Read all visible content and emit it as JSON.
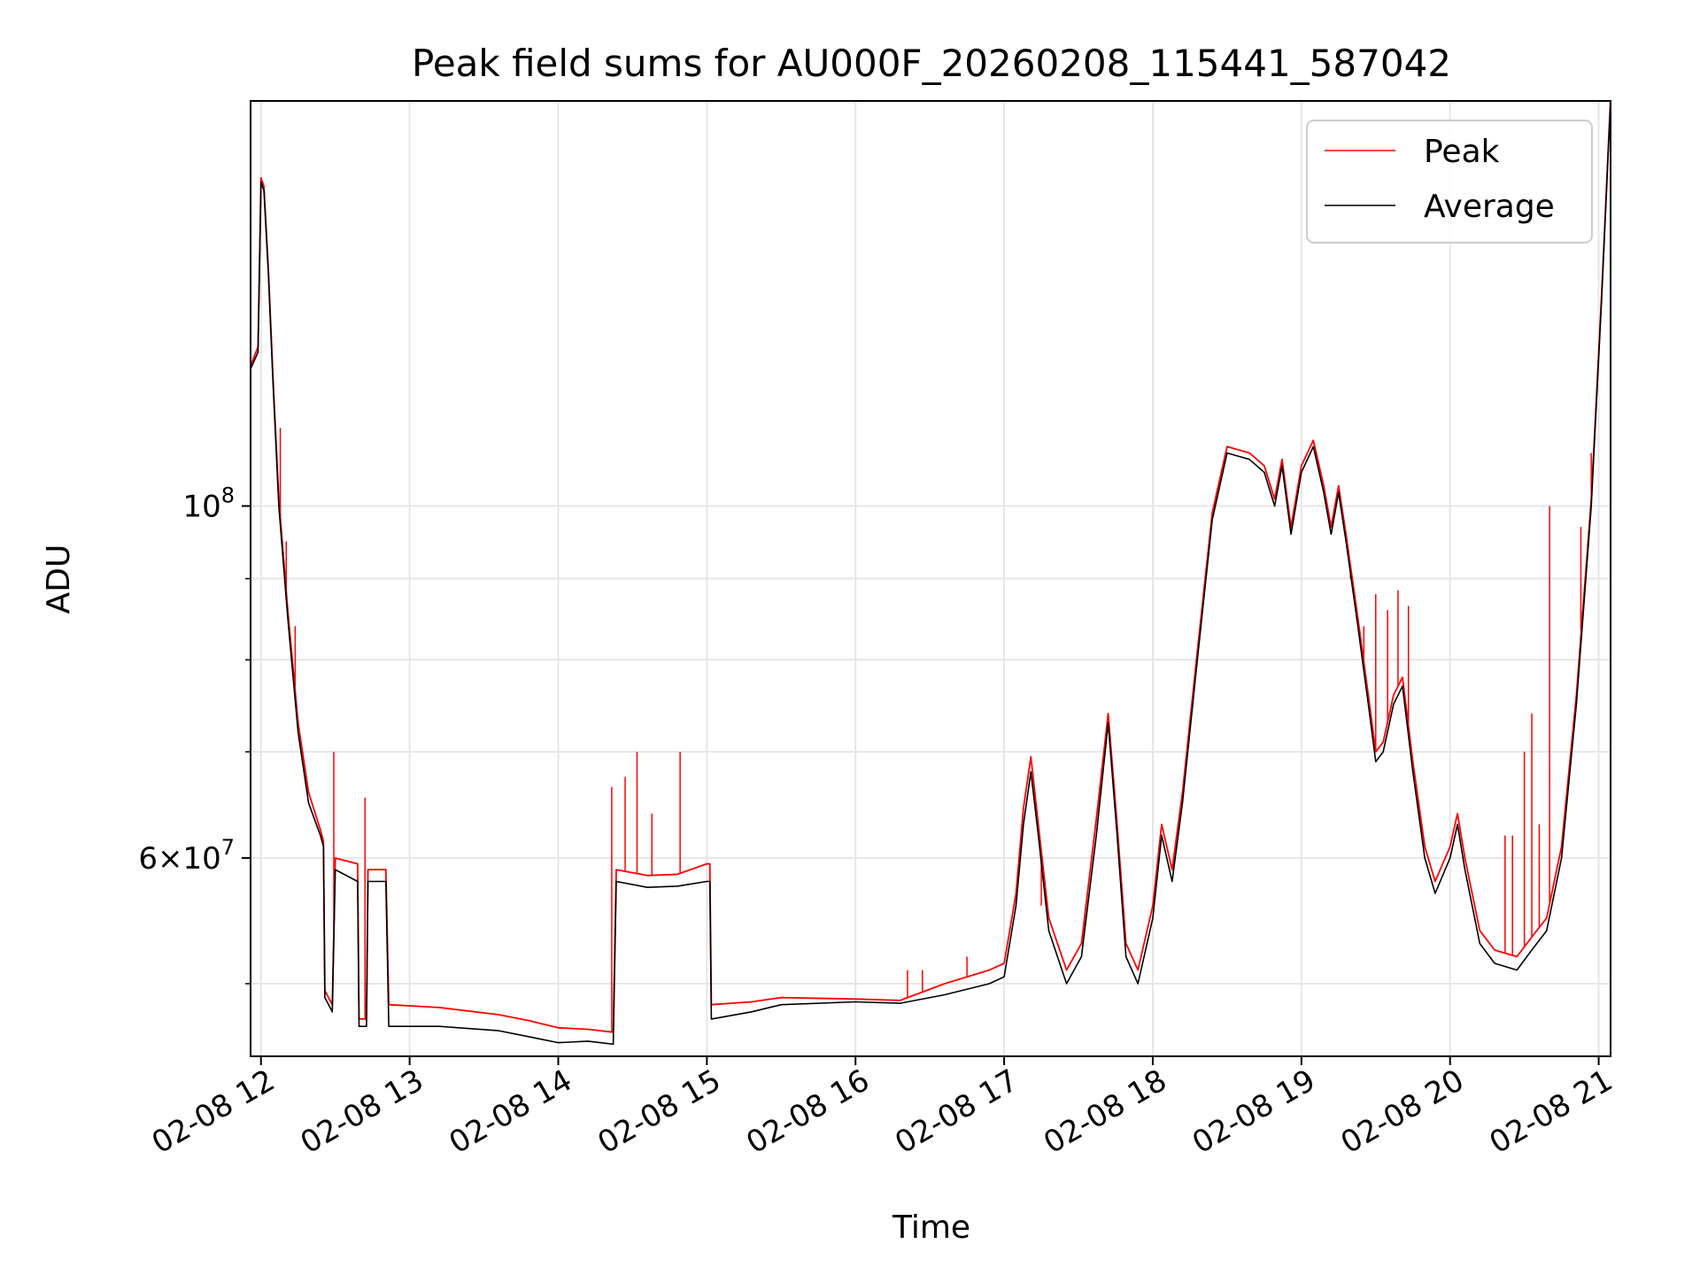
{
  "chart_data": {
    "type": "line",
    "title": "Peak field sums for AU000F_20260208_115441_587042",
    "xlabel": "Time",
    "ylabel": "ADU",
    "yscale": "log",
    "grid": true,
    "xlim": [
      11.93,
      21.08
    ],
    "ylim": [
      45000000,
      180000000
    ],
    "x_ticks": [
      {
        "value": 12,
        "label": "02-08 12"
      },
      {
        "value": 13,
        "label": "02-08 13"
      },
      {
        "value": 14,
        "label": "02-08 14"
      },
      {
        "value": 15,
        "label": "02-08 15"
      },
      {
        "value": 16,
        "label": "02-08 16"
      },
      {
        "value": 17,
        "label": "02-08 17"
      },
      {
        "value": 18,
        "label": "02-08 18"
      },
      {
        "value": 19,
        "label": "02-08 19"
      },
      {
        "value": 20,
        "label": "02-08 20"
      },
      {
        "value": 21,
        "label": "02-08 21"
      }
    ],
    "y_major_ticks": [
      {
        "value": 100000000,
        "base": "10",
        "exp": "8",
        "mantissa": ""
      },
      {
        "value": 60000000,
        "base": "10",
        "exp": "7",
        "mantissa": "6×"
      }
    ],
    "y_minor_ticks": [
      50000000,
      70000000,
      80000000,
      90000000
    ],
    "legend": {
      "position": "top-right",
      "entries": [
        {
          "label": "Peak",
          "color": "#ff0000"
        },
        {
          "label": "Average",
          "color": "#000000"
        }
      ]
    },
    "series": [
      {
        "name": "Average",
        "color": "#000000",
        "points": [
          [
            11.93,
            122000000
          ],
          [
            11.98,
            125000000
          ],
          [
            12.0,
            160000000
          ],
          [
            12.02,
            158000000
          ],
          [
            12.05,
            140000000
          ],
          [
            12.08,
            120000000
          ],
          [
            12.12,
            100000000
          ],
          [
            12.18,
            85000000
          ],
          [
            12.25,
            72000000
          ],
          [
            12.32,
            65000000
          ],
          [
            12.4,
            62000000
          ],
          [
            12.42,
            61000000
          ],
          [
            12.43,
            49000000
          ],
          [
            12.48,
            48000000
          ],
          [
            12.5,
            59000000
          ],
          [
            12.65,
            58000000
          ],
          [
            12.66,
            47000000
          ],
          [
            12.71,
            47000000
          ],
          [
            12.72,
            58000000
          ],
          [
            12.84,
            58000000
          ],
          [
            12.86,
            47000000
          ],
          [
            13.2,
            47000000
          ],
          [
            13.6,
            46700000
          ],
          [
            13.8,
            46300000
          ],
          [
            14.0,
            45900000
          ],
          [
            14.2,
            46000000
          ],
          [
            14.37,
            45800000
          ],
          [
            14.39,
            58000000
          ],
          [
            14.6,
            57500000
          ],
          [
            14.8,
            57600000
          ],
          [
            15.0,
            58000000
          ],
          [
            15.02,
            58000000
          ],
          [
            15.03,
            47500000
          ],
          [
            15.3,
            48000000
          ],
          [
            15.5,
            48500000
          ],
          [
            16.0,
            48700000
          ],
          [
            16.3,
            48600000
          ],
          [
            16.6,
            49200000
          ],
          [
            16.9,
            50000000
          ],
          [
            17.0,
            50500000
          ],
          [
            17.08,
            56000000
          ],
          [
            17.13,
            63000000
          ],
          [
            17.18,
            68000000
          ],
          [
            17.23,
            62000000
          ],
          [
            17.3,
            54000000
          ],
          [
            17.42,
            50000000
          ],
          [
            17.52,
            52000000
          ],
          [
            17.62,
            62000000
          ],
          [
            17.7,
            73000000
          ],
          [
            17.76,
            62000000
          ],
          [
            17.82,
            52000000
          ],
          [
            17.9,
            50000000
          ],
          [
            18.0,
            55000000
          ],
          [
            18.06,
            62000000
          ],
          [
            18.13,
            58000000
          ],
          [
            18.2,
            65000000
          ],
          [
            18.3,
            80000000
          ],
          [
            18.4,
            98000000
          ],
          [
            18.5,
            108000000
          ],
          [
            18.65,
            107000000
          ],
          [
            18.75,
            105000000
          ],
          [
            18.82,
            100000000
          ],
          [
            18.87,
            106000000
          ],
          [
            18.93,
            96000000
          ],
          [
            19.0,
            105000000
          ],
          [
            19.08,
            109000000
          ],
          [
            19.15,
            102000000
          ],
          [
            19.2,
            96000000
          ],
          [
            19.25,
            102000000
          ],
          [
            19.3,
            95000000
          ],
          [
            19.38,
            84000000
          ],
          [
            19.45,
            75000000
          ],
          [
            19.5,
            69000000
          ],
          [
            19.55,
            70000000
          ],
          [
            19.62,
            75000000
          ],
          [
            19.68,
            77000000
          ],
          [
            19.75,
            68000000
          ],
          [
            19.83,
            60000000
          ],
          [
            19.9,
            57000000
          ],
          [
            20.0,
            60000000
          ],
          [
            20.05,
            63000000
          ],
          [
            20.1,
            59000000
          ],
          [
            20.2,
            53000000
          ],
          [
            20.3,
            51500000
          ],
          [
            20.45,
            51000000
          ],
          [
            20.55,
            52500000
          ],
          [
            20.65,
            54000000
          ],
          [
            20.75,
            60000000
          ],
          [
            20.85,
            75000000
          ],
          [
            20.95,
            100000000
          ],
          [
            21.02,
            135000000
          ],
          [
            21.08,
            180000000
          ]
        ]
      },
      {
        "name": "Peak",
        "color": "#ff0000",
        "points": [
          [
            11.93,
            122500000
          ],
          [
            11.98,
            126000000
          ],
          [
            12.0,
            161000000
          ],
          [
            12.02,
            159000000
          ],
          [
            12.05,
            141000000
          ],
          [
            12.08,
            121000000
          ],
          [
            12.12,
            101000000
          ],
          [
            12.18,
            86000000
          ],
          [
            12.25,
            73000000
          ],
          [
            12.32,
            66000000
          ],
          [
            12.4,
            62500000
          ],
          [
            12.42,
            61500000
          ],
          [
            12.43,
            49500000
          ],
          [
            12.48,
            48500000
          ],
          [
            12.5,
            60000000
          ],
          [
            12.65,
            59500000
          ],
          [
            12.66,
            47500000
          ],
          [
            12.71,
            47500000
          ],
          [
            12.72,
            59000000
          ],
          [
            12.84,
            59000000
          ],
          [
            12.86,
            48500000
          ],
          [
            13.2,
            48300000
          ],
          [
            13.6,
            47800000
          ],
          [
            13.8,
            47400000
          ],
          [
            14.0,
            46900000
          ],
          [
            14.2,
            46800000
          ],
          [
            14.37,
            46600000
          ],
          [
            14.39,
            59000000
          ],
          [
            14.6,
            58500000
          ],
          [
            14.8,
            58600000
          ],
          [
            15.0,
            59500000
          ],
          [
            15.02,
            59500000
          ],
          [
            15.03,
            48500000
          ],
          [
            15.3,
            48700000
          ],
          [
            15.5,
            49000000
          ],
          [
            16.0,
            48900000
          ],
          [
            16.3,
            48800000
          ],
          [
            16.6,
            50000000
          ],
          [
            16.9,
            51000000
          ],
          [
            17.0,
            51500000
          ],
          [
            17.08,
            57000000
          ],
          [
            17.13,
            64500000
          ],
          [
            17.18,
            69500000
          ],
          [
            17.23,
            63000000
          ],
          [
            17.3,
            55000000
          ],
          [
            17.42,
            51000000
          ],
          [
            17.52,
            53000000
          ],
          [
            17.62,
            63500000
          ],
          [
            17.7,
            74000000
          ],
          [
            17.76,
            63000000
          ],
          [
            17.82,
            53000000
          ],
          [
            17.9,
            51000000
          ],
          [
            18.0,
            56000000
          ],
          [
            18.06,
            63000000
          ],
          [
            18.13,
            59000000
          ],
          [
            18.2,
            66000000
          ],
          [
            18.3,
            81000000
          ],
          [
            18.4,
            99000000
          ],
          [
            18.5,
            109000000
          ],
          [
            18.65,
            108000000
          ],
          [
            18.75,
            106000000
          ],
          [
            18.82,
            101000000
          ],
          [
            18.87,
            107000000
          ],
          [
            18.93,
            97000000
          ],
          [
            19.0,
            106000000
          ],
          [
            19.08,
            110000000
          ],
          [
            19.15,
            103000000
          ],
          [
            19.2,
            97000000
          ],
          [
            19.25,
            103000000
          ],
          [
            19.3,
            96000000
          ],
          [
            19.38,
            85000000
          ],
          [
            19.45,
            76000000
          ],
          [
            19.5,
            70000000
          ],
          [
            19.55,
            71000000
          ],
          [
            19.62,
            76000000
          ],
          [
            19.68,
            78000000
          ],
          [
            19.75,
            69000000
          ],
          [
            19.83,
            61000000
          ],
          [
            19.9,
            58000000
          ],
          [
            20.0,
            61000000
          ],
          [
            20.05,
            64000000
          ],
          [
            20.1,
            60000000
          ],
          [
            20.2,
            54000000
          ],
          [
            20.3,
            52500000
          ],
          [
            20.45,
            52000000
          ],
          [
            20.55,
            53500000
          ],
          [
            20.65,
            55000000
          ],
          [
            20.75,
            61000000
          ],
          [
            20.85,
            76000000
          ],
          [
            20.95,
            101000000
          ],
          [
            21.02,
            136000000
          ],
          [
            21.08,
            181000000
          ]
        ],
        "spikes": [
          [
            12.07,
            128000000
          ],
          [
            12.13,
            112000000
          ],
          [
            12.17,
            95000000
          ],
          [
            12.23,
            84000000
          ],
          [
            12.49,
            70000000
          ],
          [
            12.7,
            65500000
          ],
          [
            14.36,
            66500000
          ],
          [
            14.45,
            67500000
          ],
          [
            14.53,
            70000000
          ],
          [
            14.63,
            64000000
          ],
          [
            14.82,
            70000000
          ],
          [
            16.35,
            51000000
          ],
          [
            16.45,
            51000000
          ],
          [
            16.75,
            52000000
          ],
          [
            17.25,
            56000000
          ],
          [
            19.33,
            90000000
          ],
          [
            19.42,
            84000000
          ],
          [
            19.5,
            88000000
          ],
          [
            19.58,
            86000000
          ],
          [
            19.65,
            88500000
          ],
          [
            19.72,
            86500000
          ],
          [
            20.37,
            62000000
          ],
          [
            20.42,
            62000000
          ],
          [
            20.5,
            70000000
          ],
          [
            20.55,
            74000000
          ],
          [
            20.6,
            63000000
          ],
          [
            20.67,
            100000000
          ],
          [
            20.88,
            97000000
          ],
          [
            20.95,
            108000000
          ]
        ]
      }
    ]
  }
}
